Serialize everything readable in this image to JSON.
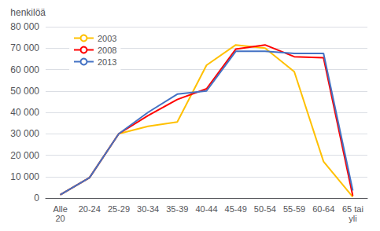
{
  "chart_data": {
    "type": "line",
    "categories": [
      "Alle\n20",
      "20-24",
      "25-29",
      "30-34",
      "35-39",
      "40-44",
      "45-49",
      "50-54",
      "55-59",
      "60-64",
      "65 tai\nyli"
    ],
    "series": [
      {
        "name": "2003",
        "color": "#FFC000",
        "values": [
          1500,
          9500,
          30000,
          33500,
          35500,
          62000,
          71500,
          70000,
          59000,
          17000,
          500
        ]
      },
      {
        "name": "2008",
        "color": "#FF0000",
        "values": [
          1500,
          9500,
          30000,
          38500,
          46000,
          51000,
          69500,
          71500,
          66000,
          65500,
          1000
        ]
      },
      {
        "name": "2013",
        "color": "#4472C4",
        "values": [
          1500,
          9500,
          30000,
          40000,
          48500,
          50000,
          68500,
          68500,
          67500,
          67500,
          3500
        ]
      }
    ],
    "ylabel": "henkilöä",
    "ylim": [
      0,
      80000
    ],
    "yticks": [
      0,
      {
        "value": 10000,
        "label": "10 000"
      },
      {
        "value": 20000,
        "label": "20 000"
      },
      {
        "value": 30000,
        "label": "30 000"
      },
      {
        "value": 40000,
        "label": "40 000"
      },
      {
        "value": 50000,
        "label": "50 000"
      },
      {
        "value": 60000,
        "label": "60 000"
      },
      {
        "value": 70000,
        "label": "70 000"
      },
      {
        "value": 80000,
        "label": "80 000"
      }
    ],
    "grid": true,
    "legend": "upper left"
  }
}
